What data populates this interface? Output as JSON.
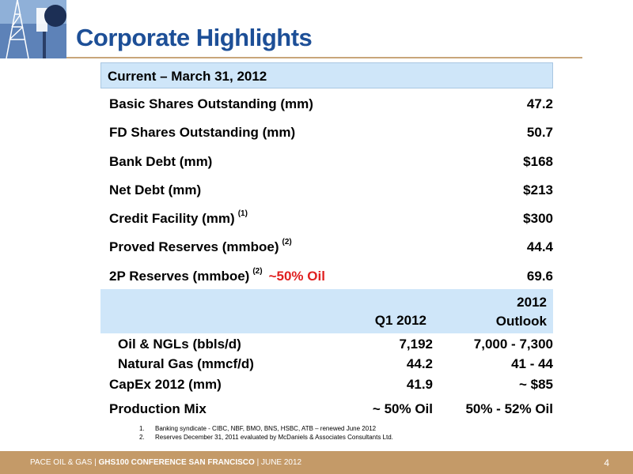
{
  "header": {
    "title": "Corporate Highlights"
  },
  "section": {
    "label": "Current – March 31, 2012"
  },
  "summary_rows": [
    {
      "label": "Basic Shares Outstanding (mm)",
      "value": "47.2"
    },
    {
      "label": "FD Shares Outstanding (mm)",
      "value": "50.7"
    },
    {
      "label": "Bank Debt (mm)",
      "value": "$168"
    },
    {
      "label": "Net Debt (mm)",
      "value": "$213"
    },
    {
      "label": "Credit Facility (mm)",
      "note": "(1)",
      "value": "$300"
    },
    {
      "label": "Proved Reserves (mmboe)",
      "note": "(2)",
      "value": "44.4"
    },
    {
      "label": "2P Reserves (mmboe)",
      "note": "(2)",
      "highlight": "~50% Oil",
      "value": "69.6"
    }
  ],
  "columns": {
    "q1": "Q1 2012",
    "outlook_year": "2012",
    "outlook": "Outlook"
  },
  "detail_rows": [
    {
      "label": "Oil & NGLs (bbls/d)",
      "q1": "7,192",
      "outlook": "7,000 - 7,300"
    },
    {
      "label": "Natural Gas (mmcf/d)",
      "q1": "44.2",
      "outlook": "41 - 44"
    },
    {
      "label": "CapEx 2012 (mm)",
      "q1": "41.9",
      "outlook": "~ $85"
    },
    {
      "label": "Production Mix",
      "q1": "~ 50% Oil",
      "outlook": "50% - 52% Oil"
    }
  ],
  "footnotes": [
    {
      "num": "1.",
      "text": "Banking syndicate  - CIBC, NBF, BMO, BNS, HSBC, ATB – renewed June 2012"
    },
    {
      "num": "2.",
      "text": "Reserves December 31, 2011 evaluated by McDaniels & Associates Consultants Ltd."
    }
  ],
  "footer": {
    "company": "PACE OIL & GAS",
    "sep1": "|",
    "conference": "GHS100 CONFERENCE SAN FRANCISCO",
    "sep2": "|",
    "date": "JUNE 2012",
    "page": "4"
  },
  "colors": {
    "title": "#1d4f97",
    "highlight": "#e02020",
    "band": "#cfe6f9",
    "footer": "#c49a68"
  },
  "icons": {
    "logo": "oil-derrick-image"
  }
}
